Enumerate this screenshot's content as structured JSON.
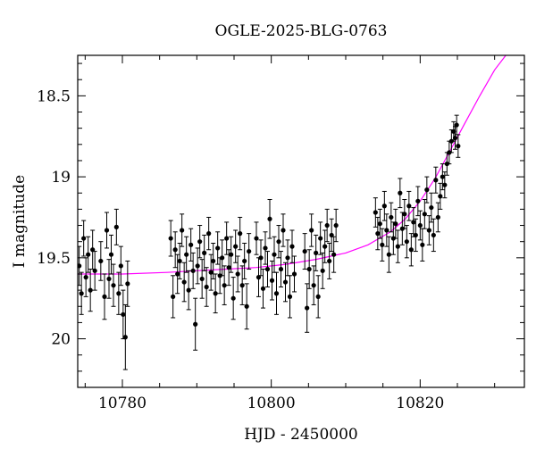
{
  "chart_data": {
    "type": "scatter",
    "title": "OGLE-2025-BLG-0763",
    "xlabel": "HJD - 2450000",
    "ylabel": "I magnitude",
    "xlim": [
      10774,
      10834
    ],
    "ylim": [
      20.3,
      18.25
    ],
    "y_inverted": true,
    "x_ticks": [
      10780,
      10800,
      10820
    ],
    "x_tick_labels": [
      "10780",
      "10800",
      "10820"
    ],
    "y_ticks": [
      18.5,
      19,
      19.5,
      20
    ],
    "y_tick_labels": [
      "18.5",
      "19",
      "19.5",
      "20"
    ],
    "grid": false,
    "legend": "none",
    "colors": {
      "points": "#000000",
      "model": "#ff00ff",
      "axes": "#000000"
    },
    "series": [
      {
        "type": "scatter-errorbar",
        "x": [
          10774.2,
          10774.5,
          10774.8,
          10775.1,
          10775.4,
          10775.7,
          10776.0,
          10776.3,
          10777.1,
          10777.6,
          10777.9,
          10778.2,
          10778.5,
          10778.8,
          10779.2,
          10779.5,
          10779.8,
          10780.1,
          10780.4,
          10780.7,
          10786.5,
          10786.8,
          10787.1,
          10787.4,
          10787.7,
          10788.0,
          10788.3,
          10788.6,
          10788.9,
          10789.2,
          10789.5,
          10789.8,
          10790.1,
          10790.4,
          10790.7,
          10791.0,
          10791.3,
          10791.6,
          10791.9,
          10792.2,
          10792.5,
          10792.8,
          10793.1,
          10793.4,
          10793.7,
          10794.0,
          10794.3,
          10794.6,
          10794.9,
          10795.2,
          10795.5,
          10795.8,
          10796.1,
          10796.4,
          10796.7,
          10797.0,
          10798.0,
          10798.3,
          10798.6,
          10798.9,
          10799.2,
          10799.5,
          10799.8,
          10800.1,
          10800.4,
          10800.7,
          10801.0,
          10801.3,
          10801.6,
          10801.9,
          10802.2,
          10802.5,
          10802.8,
          10803.1,
          10804.5,
          10804.8,
          10805.1,
          10805.4,
          10805.7,
          10806.0,
          10806.3,
          10806.6,
          10806.9,
          10807.2,
          10807.5,
          10807.8,
          10808.1,
          10808.4,
          10808.7,
          10814.0,
          10814.3,
          10814.6,
          10814.9,
          10815.2,
          10815.5,
          10815.8,
          10816.1,
          10816.4,
          10816.7,
          10817.0,
          10817.3,
          10817.6,
          10817.9,
          10818.2,
          10818.5,
          10818.8,
          10819.1,
          10819.4,
          10819.7,
          10820.0,
          10820.3,
          10820.6,
          10820.9,
          10821.2,
          10821.5,
          10821.8,
          10822.1,
          10822.4,
          10822.7,
          10823.0,
          10823.3,
          10823.6,
          10823.9,
          10824.2,
          10824.5,
          10824.7,
          10824.9,
          10825.1
        ],
        "y": [
          19.55,
          19.72,
          19.38,
          19.62,
          19.48,
          19.7,
          19.45,
          19.58,
          19.52,
          19.74,
          19.33,
          19.63,
          19.48,
          19.67,
          19.31,
          19.72,
          19.55,
          19.85,
          19.99,
          19.66,
          19.38,
          19.74,
          19.45,
          19.6,
          19.52,
          19.33,
          19.65,
          19.48,
          19.7,
          19.42,
          19.58,
          19.91,
          19.55,
          19.4,
          19.63,
          19.47,
          19.68,
          19.35,
          19.59,
          19.52,
          19.72,
          19.44,
          19.61,
          19.5,
          19.67,
          19.38,
          19.56,
          19.48,
          19.75,
          19.43,
          19.6,
          19.35,
          19.67,
          19.52,
          19.8,
          19.46,
          19.38,
          19.62,
          19.5,
          19.69,
          19.44,
          19.57,
          19.26,
          19.64,
          19.48,
          19.72,
          19.4,
          19.57,
          19.33,
          19.65,
          19.5,
          19.74,
          19.43,
          19.6,
          19.46,
          19.81,
          19.57,
          19.33,
          19.67,
          19.47,
          19.74,
          19.38,
          19.58,
          19.43,
          19.3,
          19.52,
          19.36,
          19.48,
          19.3,
          19.22,
          19.35,
          19.29,
          19.42,
          19.18,
          19.33,
          19.48,
          19.25,
          19.38,
          19.29,
          19.43,
          19.1,
          19.32,
          19.23,
          19.4,
          19.18,
          19.45,
          19.28,
          19.36,
          19.15,
          19.3,
          19.42,
          19.23,
          19.08,
          19.33,
          19.19,
          19.36,
          19.02,
          19.25,
          19.12,
          19.0,
          19.05,
          18.92,
          18.85,
          18.78,
          18.72,
          18.76,
          18.68,
          18.81
        ],
        "yerr": [
          0.12,
          0.13,
          0.11,
          0.12,
          0.11,
          0.13,
          0.12,
          0.12,
          0.12,
          0.14,
          0.11,
          0.12,
          0.12,
          0.13,
          0.11,
          0.13,
          0.12,
          0.15,
          0.2,
          0.14,
          0.11,
          0.13,
          0.11,
          0.12,
          0.11,
          0.1,
          0.12,
          0.11,
          0.12,
          0.1,
          0.11,
          0.16,
          0.11,
          0.1,
          0.12,
          0.11,
          0.12,
          0.1,
          0.11,
          0.11,
          0.12,
          0.1,
          0.11,
          0.11,
          0.12,
          0.1,
          0.11,
          0.11,
          0.13,
          0.1,
          0.11,
          0.1,
          0.12,
          0.11,
          0.14,
          0.11,
          0.1,
          0.12,
          0.11,
          0.12,
          0.1,
          0.11,
          0.12,
          0.12,
          0.11,
          0.13,
          0.1,
          0.11,
          0.1,
          0.12,
          0.11,
          0.13,
          0.1,
          0.11,
          0.11,
          0.15,
          0.12,
          0.1,
          0.12,
          0.11,
          0.13,
          0.1,
          0.11,
          0.1,
          0.1,
          0.11,
          0.1,
          0.11,
          0.1,
          0.09,
          0.1,
          0.09,
          0.1,
          0.09,
          0.1,
          0.11,
          0.09,
          0.1,
          0.09,
          0.1,
          0.09,
          0.1,
          0.09,
          0.1,
          0.09,
          0.1,
          0.09,
          0.1,
          0.09,
          0.09,
          0.1,
          0.09,
          0.08,
          0.09,
          0.09,
          0.1,
          0.08,
          0.09,
          0.08,
          0.08,
          0.08,
          0.07,
          0.07,
          0.07,
          0.06,
          0.07,
          0.06,
          0.07
        ]
      },
      {
        "type": "model-curve",
        "x": [
          10774,
          10780,
          10786,
          10790,
          10794,
          10798,
          10802,
          10806,
          10810,
          10813,
          10816,
          10818,
          10820,
          10822,
          10824,
          10826,
          10828,
          10830,
          10831.5
        ],
        "y": [
          19.6,
          19.6,
          19.59,
          19.58,
          19.57,
          19.56,
          19.54,
          19.51,
          19.47,
          19.42,
          19.34,
          19.26,
          19.15,
          19.01,
          18.84,
          18.67,
          18.5,
          18.34,
          18.25
        ]
      }
    ]
  }
}
